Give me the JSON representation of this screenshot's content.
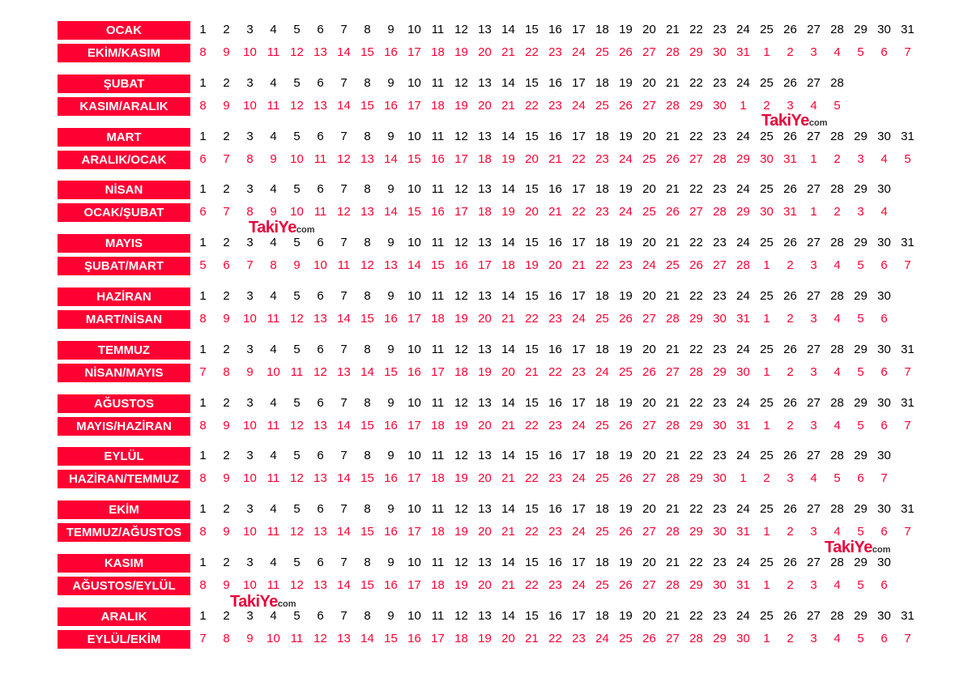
{
  "logo": {
    "text": "TakiYe",
    "suffix": "com"
  },
  "months": [
    {
      "month": "OCAK",
      "due": "EKİM/KASIM",
      "days": 31,
      "due_days": [
        8,
        9,
        10,
        11,
        12,
        13,
        14,
        15,
        16,
        17,
        18,
        19,
        20,
        21,
        22,
        23,
        24,
        25,
        26,
        27,
        28,
        29,
        30,
        31,
        1,
        2,
        3,
        4,
        5,
        6,
        7
      ]
    },
    {
      "month": "ŞUBAT",
      "due": "KASIM/ARALIK",
      "days": 28,
      "due_days": [
        8,
        9,
        10,
        11,
        12,
        13,
        14,
        15,
        16,
        17,
        18,
        19,
        20,
        21,
        22,
        23,
        24,
        25,
        26,
        27,
        28,
        29,
        30,
        1,
        2,
        3,
        4,
        5
      ]
    },
    {
      "month": "MART",
      "due": "ARALIK/OCAK",
      "days": 31,
      "due_days": [
        6,
        7,
        8,
        9,
        10,
        11,
        12,
        13,
        14,
        15,
        16,
        17,
        18,
        19,
        20,
        21,
        22,
        23,
        24,
        25,
        26,
        27,
        28,
        29,
        30,
        31,
        1,
        2,
        3,
        4,
        5
      ]
    },
    {
      "month": "NİSAN",
      "due": "OCAK/ŞUBAT",
      "days": 30,
      "due_days": [
        6,
        7,
        8,
        9,
        10,
        11,
        12,
        13,
        14,
        15,
        16,
        17,
        18,
        19,
        20,
        21,
        22,
        23,
        24,
        25,
        26,
        27,
        28,
        29,
        30,
        31,
        1,
        2,
        3,
        4
      ]
    },
    {
      "month": "MAYIS",
      "due": "ŞUBAT/MART",
      "days": 31,
      "due_days": [
        5,
        6,
        7,
        8,
        9,
        10,
        11,
        12,
        13,
        14,
        15,
        16,
        17,
        18,
        19,
        20,
        21,
        22,
        23,
        24,
        25,
        26,
        27,
        28,
        1,
        2,
        3,
        4,
        5,
        6,
        7
      ]
    },
    {
      "month": "HAZİRAN",
      "due": "MART/NİSAN",
      "days": 30,
      "due_days": [
        8,
        9,
        10,
        11,
        12,
        13,
        14,
        15,
        16,
        17,
        18,
        19,
        20,
        21,
        22,
        23,
        24,
        25,
        26,
        27,
        28,
        29,
        30,
        31,
        1,
        2,
        3,
        4,
        5,
        6
      ]
    },
    {
      "month": "TEMMUZ",
      "due": "NİSAN/MAYIS",
      "days": 31,
      "due_days": [
        7,
        8,
        9,
        10,
        11,
        12,
        13,
        14,
        15,
        16,
        17,
        18,
        19,
        20,
        21,
        22,
        23,
        24,
        25,
        26,
        27,
        28,
        29,
        30,
        1,
        2,
        3,
        4,
        5,
        6,
        7
      ]
    },
    {
      "month": "AĞUSTOS",
      "due": "MAYIS/HAZİRAN",
      "days": 31,
      "due_days": [
        8,
        9,
        10,
        11,
        12,
        13,
        14,
        15,
        16,
        17,
        18,
        19,
        20,
        21,
        22,
        23,
        24,
        25,
        26,
        27,
        28,
        29,
        30,
        31,
        1,
        2,
        3,
        4,
        5,
        6,
        7
      ]
    },
    {
      "month": "EYLÜL",
      "due": "HAZİRAN/TEMMUZ",
      "days": 30,
      "due_days": [
        8,
        9,
        10,
        11,
        12,
        13,
        14,
        15,
        16,
        17,
        18,
        19,
        20,
        21,
        22,
        23,
        24,
        25,
        26,
        27,
        28,
        29,
        30,
        1,
        2,
        3,
        4,
        5,
        6,
        7
      ]
    },
    {
      "month": "EKİM",
      "due": "TEMMUZ/AĞUSTOS",
      "days": 31,
      "due_days": [
        8,
        9,
        10,
        11,
        12,
        13,
        14,
        15,
        16,
        17,
        18,
        19,
        20,
        21,
        22,
        23,
        24,
        25,
        26,
        27,
        28,
        29,
        30,
        31,
        1,
        2,
        3,
        4,
        5,
        6,
        7
      ]
    },
    {
      "month": "KASIM",
      "due": "AĞUSTOS/EYLÜL",
      "days": 30,
      "due_days": [
        8,
        9,
        10,
        11,
        12,
        13,
        14,
        15,
        16,
        17,
        18,
        19,
        20,
        21,
        22,
        23,
        24,
        25,
        26,
        27,
        28,
        29,
        30,
        31,
        1,
        2,
        3,
        4,
        5,
        6
      ]
    },
    {
      "month": "ARALIK",
      "due": "EYLÜL/EKİM",
      "days": 31,
      "due_days": [
        7,
        8,
        9,
        10,
        11,
        12,
        13,
        14,
        15,
        16,
        17,
        18,
        19,
        20,
        21,
        22,
        23,
        24,
        25,
        26,
        27,
        28,
        29,
        30,
        1,
        2,
        3,
        4,
        5,
        6,
        7
      ]
    }
  ]
}
